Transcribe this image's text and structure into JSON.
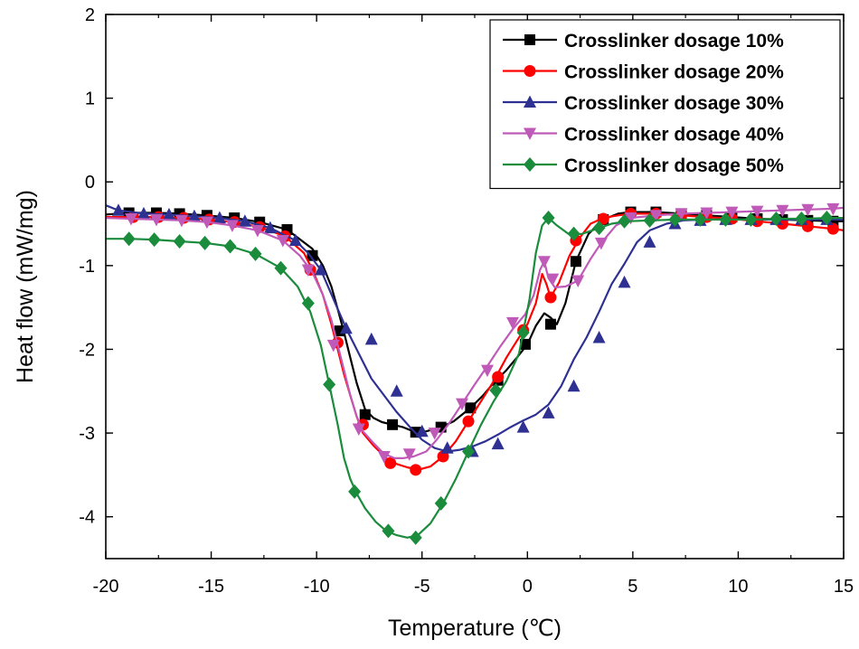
{
  "chart_data": {
    "type": "line",
    "title": "",
    "xlabel": "Temperature (℃)",
    "ylabel": "Heat flow (mW/mg)",
    "xlim": [
      -20,
      15
    ],
    "ylim": [
      -4.5,
      2
    ],
    "xticks": [
      "-20",
      "-15",
      "-10",
      "-5",
      "0",
      "5",
      "10",
      "15"
    ],
    "yticks": [
      "2",
      "1",
      "0",
      "-1",
      "-2",
      "-3",
      "-4"
    ],
    "grid": false,
    "legend_position": "top-right",
    "series": [
      {
        "name": "Crosslinker dosage 10%",
        "color": "#000000",
        "marker": "square",
        "x": [
          -20,
          -18.9,
          -17.6,
          -16.5,
          -15.2,
          -13.9,
          -12.7,
          -11.4,
          -10.2,
          -9.7,
          -9.3,
          -9.0,
          -8.7,
          -8.4,
          -8.1,
          -7.7,
          -7.3,
          -6.9,
          -6.4,
          -5.9,
          -5.3,
          -4.8,
          -4.1,
          -3.5,
          -2.7,
          -2.1,
          -1.6,
          -1.0,
          -0.5,
          0,
          0.4,
          0.8,
          1.1,
          1.4,
          1.8,
          2.3,
          2.9,
          3.6,
          4.3,
          4.9,
          6.1,
          7.3,
          8.5,
          9.7,
          10.9,
          12.1,
          13.3,
          14.5,
          15
        ],
        "y": [
          -0.39,
          -0.37,
          -0.37,
          -0.38,
          -0.4,
          -0.43,
          -0.48,
          -0.57,
          -0.8,
          -1.0,
          -1.25,
          -1.52,
          -1.8,
          -2.1,
          -2.4,
          -2.72,
          -2.82,
          -2.87,
          -2.9,
          -2.93,
          -2.99,
          -2.98,
          -2.93,
          -2.86,
          -2.7,
          -2.55,
          -2.4,
          -2.25,
          -2.1,
          -1.94,
          -1.72,
          -1.57,
          -1.62,
          -1.7,
          -1.45,
          -0.95,
          -0.62,
          -0.45,
          -0.38,
          -0.36,
          -0.36,
          -0.38,
          -0.4,
          -0.42,
          -0.44,
          -0.45,
          -0.46,
          -0.47,
          -0.47
        ],
        "markers": [
          [
            -18.9,
            -0.37
          ],
          [
            -17.6,
            -0.37
          ],
          [
            -16.5,
            -0.38
          ],
          [
            -15.2,
            -0.4
          ],
          [
            -13.9,
            -0.43
          ],
          [
            -12.7,
            -0.48
          ],
          [
            -11.4,
            -0.57
          ],
          [
            -10.2,
            -0.88
          ],
          [
            -8.9,
            -1.78
          ],
          [
            -7.7,
            -2.78
          ],
          [
            -6.4,
            -2.9
          ],
          [
            -5.3,
            -2.99
          ],
          [
            -4.1,
            -2.93
          ],
          [
            -2.7,
            -2.7
          ],
          [
            -1.4,
            -2.37
          ],
          [
            -0.1,
            -1.94
          ],
          [
            1.1,
            -1.7
          ],
          [
            2.3,
            -0.95
          ],
          [
            3.6,
            -0.45
          ],
          [
            4.9,
            -0.36
          ],
          [
            6.1,
            -0.36
          ],
          [
            7.3,
            -0.38
          ],
          [
            8.5,
            -0.4
          ],
          [
            9.7,
            -0.42
          ],
          [
            10.9,
            -0.44
          ],
          [
            12.1,
            -0.45
          ],
          [
            13.3,
            -0.46
          ],
          [
            14.5,
            -0.47
          ]
        ]
      },
      {
        "name": "Crosslinker dosage 20%",
        "color": "#ff0000",
        "marker": "circle",
        "x": [
          -20,
          -18.7,
          -17.5,
          -16.3,
          -15.1,
          -13.9,
          -12.7,
          -11.5,
          -10.6,
          -10.2,
          -9.7,
          -9.3,
          -9.0,
          -8.7,
          -8.4,
          -8.1,
          -7.8,
          -7.3,
          -6.7,
          -6.2,
          -5.7,
          -5.2,
          -4.6,
          -4.0,
          -3.4,
          -2.8,
          -2.2,
          -1.6,
          -1.0,
          -0.5,
          0,
          0.4,
          0.7,
          0.9,
          1.1,
          1.5,
          2.0,
          2.5,
          3.0,
          3.6,
          4.3,
          4.9,
          6.1,
          7.3,
          8.5,
          9.7,
          10.9,
          12.1,
          13.3,
          14.5,
          15
        ],
        "y": [
          -0.42,
          -0.42,
          -0.42,
          -0.43,
          -0.45,
          -0.48,
          -0.54,
          -0.65,
          -0.85,
          -1.05,
          -1.35,
          -1.7,
          -2.0,
          -2.3,
          -2.55,
          -2.8,
          -3.0,
          -3.15,
          -3.3,
          -3.37,
          -3.41,
          -3.44,
          -3.4,
          -3.28,
          -3.1,
          -2.86,
          -2.62,
          -2.38,
          -2.1,
          -1.9,
          -1.7,
          -1.45,
          -1.1,
          -1.22,
          -1.38,
          -1.2,
          -0.88,
          -0.66,
          -0.5,
          -0.43,
          -0.4,
          -0.38,
          -0.38,
          -0.4,
          -0.42,
          -0.44,
          -0.47,
          -0.5,
          -0.53,
          -0.56,
          -0.58
        ],
        "markers": [
          [
            -18.7,
            -0.42
          ],
          [
            -17.5,
            -0.42
          ],
          [
            -16.3,
            -0.43
          ],
          [
            -15.1,
            -0.45
          ],
          [
            -13.9,
            -0.48
          ],
          [
            -12.7,
            -0.54
          ],
          [
            -11.5,
            -0.65
          ],
          [
            -10.3,
            -1.05
          ],
          [
            -9.0,
            -1.92
          ],
          [
            -7.8,
            -2.9
          ],
          [
            -6.5,
            -3.36
          ],
          [
            -5.3,
            -3.44
          ],
          [
            -4.0,
            -3.28
          ],
          [
            -2.8,
            -2.86
          ],
          [
            -1.4,
            -2.33
          ],
          [
            -0.2,
            -1.77
          ],
          [
            1.1,
            -1.38
          ],
          [
            2.3,
            -0.7
          ],
          [
            3.6,
            -0.44
          ],
          [
            4.9,
            -0.38
          ],
          [
            6.1,
            -0.38
          ],
          [
            7.3,
            -0.4
          ],
          [
            8.5,
            -0.42
          ],
          [
            9.7,
            -0.44
          ],
          [
            10.9,
            -0.47
          ],
          [
            12.1,
            -0.5
          ],
          [
            13.3,
            -0.53
          ],
          [
            14.5,
            -0.56
          ]
        ]
      },
      {
        "name": "Crosslinker dosage 30%",
        "color": "#2e3192",
        "marker": "triangle-up",
        "x": [
          -20,
          -19.4,
          -18.2,
          -17.0,
          -15.8,
          -14.6,
          -13.4,
          -12.2,
          -11.0,
          -10.4,
          -9.8,
          -9.2,
          -8.6,
          -8.0,
          -7.4,
          -6.8,
          -6.2,
          -5.6,
          -5.0,
          -4.4,
          -3.8,
          -3.2,
          -2.6,
          -2.0,
          -1.4,
          -0.8,
          -0.2,
          0.4,
          1.0,
          1.6,
          2.2,
          2.8,
          3.4,
          4.0,
          4.6,
          5.2,
          5.8,
          6.6,
          7.4,
          8.5,
          9.7,
          10.9,
          12.1,
          13.3,
          14.5,
          15
        ],
        "y": [
          -0.28,
          -0.34,
          -0.38,
          -0.39,
          -0.41,
          -0.43,
          -0.47,
          -0.55,
          -0.7,
          -0.85,
          -1.05,
          -1.4,
          -1.75,
          -2.05,
          -2.35,
          -2.55,
          -2.75,
          -2.92,
          -3.08,
          -3.18,
          -3.22,
          -3.2,
          -3.16,
          -3.1,
          -3.02,
          -2.93,
          -2.85,
          -2.78,
          -2.66,
          -2.44,
          -2.12,
          -1.86,
          -1.55,
          -1.22,
          -0.98,
          -0.72,
          -0.58,
          -0.5,
          -0.46,
          -0.45,
          -0.45,
          -0.45,
          -0.45,
          -0.45,
          -0.45,
          -0.45
        ],
        "markers": [
          [
            -19.4,
            -0.34
          ],
          [
            -18.2,
            -0.38
          ],
          [
            -17.0,
            -0.39
          ],
          [
            -15.8,
            -0.41
          ],
          [
            -14.6,
            -0.43
          ],
          [
            -13.4,
            -0.47
          ],
          [
            -12.2,
            -0.55
          ],
          [
            -11.0,
            -0.7
          ],
          [
            -9.8,
            -1.05
          ],
          [
            -8.6,
            -1.75
          ],
          [
            -7.4,
            -1.88
          ],
          [
            -6.2,
            -2.5
          ],
          [
            -5.0,
            -2.98
          ],
          [
            -3.8,
            -3.18
          ],
          [
            -2.6,
            -3.22
          ],
          [
            -1.4,
            -3.13
          ],
          [
            -0.2,
            -2.93
          ],
          [
            1.0,
            -2.76
          ],
          [
            2.2,
            -2.44
          ],
          [
            3.4,
            -1.86
          ],
          [
            4.6,
            -1.2
          ],
          [
            5.8,
            -0.72
          ],
          [
            7.0,
            -0.5
          ],
          [
            8.2,
            -0.46
          ],
          [
            9.4,
            -0.45
          ],
          [
            10.6,
            -0.45
          ],
          [
            11.8,
            -0.45
          ],
          [
            13.0,
            -0.45
          ],
          [
            14.2,
            -0.45
          ]
        ]
      },
      {
        "name": "Crosslinker dosage 40%",
        "color": "#c05ab8",
        "marker": "triangle-down",
        "x": [
          -20,
          -18.8,
          -17.6,
          -16.4,
          -15.2,
          -14.0,
          -12.8,
          -11.6,
          -10.8,
          -10.2,
          -9.7,
          -9.3,
          -9.0,
          -8.7,
          -8.4,
          -8.1,
          -7.8,
          -7.3,
          -6.8,
          -6.3,
          -5.9,
          -5.4,
          -4.8,
          -4.3,
          -3.7,
          -3.1,
          -2.5,
          -1.9,
          -1.3,
          -0.7,
          -0.1,
          0.3,
          0.6,
          0.8,
          1.0,
          1.3,
          1.8,
          2.4,
          3.0,
          3.5,
          4.2,
          4.9,
          6.1,
          7.3,
          8.5,
          9.7,
          10.9,
          12.1,
          13.3,
          14.5,
          15
        ],
        "y": [
          -0.43,
          -0.44,
          -0.45,
          -0.46,
          -0.48,
          -0.52,
          -0.58,
          -0.7,
          -0.88,
          -1.08,
          -1.35,
          -1.65,
          -1.95,
          -2.25,
          -2.55,
          -2.8,
          -2.98,
          -3.12,
          -3.25,
          -3.3,
          -3.3,
          -3.28,
          -3.22,
          -3.08,
          -2.88,
          -2.65,
          -2.42,
          -2.2,
          -1.97,
          -1.76,
          -1.58,
          -1.35,
          -1.05,
          -0.95,
          -1.15,
          -1.26,
          -1.25,
          -1.18,
          -0.92,
          -0.73,
          -0.52,
          -0.43,
          -0.4,
          -0.38,
          -0.37,
          -0.36,
          -0.35,
          -0.34,
          -0.33,
          -0.32,
          -0.31
        ],
        "markers": [
          [
            -18.8,
            -0.44
          ],
          [
            -17.6,
            -0.45
          ],
          [
            -16.4,
            -0.46
          ],
          [
            -15.2,
            -0.48
          ],
          [
            -14.0,
            -0.52
          ],
          [
            -12.8,
            -0.58
          ],
          [
            -11.6,
            -0.7
          ],
          [
            -10.4,
            -1.05
          ],
          [
            -9.2,
            -1.95
          ],
          [
            -8.0,
            -2.95
          ],
          [
            -6.8,
            -3.28
          ],
          [
            -5.6,
            -3.25
          ],
          [
            -4.4,
            -3.0
          ],
          [
            -3.1,
            -2.65
          ],
          [
            -1.9,
            -2.25
          ],
          [
            -0.7,
            -1.68
          ],
          [
            0.8,
            -0.95
          ],
          [
            1.2,
            -1.16
          ],
          [
            2.4,
            -1.18
          ],
          [
            3.5,
            -0.73
          ],
          [
            4.9,
            -0.43
          ],
          [
            6.1,
            -0.4
          ],
          [
            7.3,
            -0.38
          ],
          [
            8.5,
            -0.37
          ],
          [
            9.7,
            -0.36
          ],
          [
            10.9,
            -0.35
          ],
          [
            12.1,
            -0.34
          ],
          [
            13.3,
            -0.33
          ],
          [
            14.5,
            -0.32
          ]
        ]
      },
      {
        "name": "Crosslinker dosage 50%",
        "color": "#1a8c3c",
        "marker": "diamond",
        "x": [
          -20,
          -18.9,
          -17.7,
          -16.5,
          -15.3,
          -14.1,
          -12.9,
          -11.7,
          -10.9,
          -10.3,
          -9.8,
          -9.4,
          -9.0,
          -8.7,
          -8.4,
          -8.1,
          -7.7,
          -7.2,
          -6.7,
          -6.2,
          -5.7,
          -5.2,
          -4.6,
          -4.0,
          -3.4,
          -2.8,
          -2.2,
          -1.6,
          -1.0,
          -0.4,
          0.1,
          0.4,
          0.7,
          1.0,
          1.4,
          2.0,
          2.6,
          3.3,
          4.0,
          4.7,
          5.9,
          7.1,
          8.3,
          9.5,
          10.7,
          11.9,
          13.1,
          14.3,
          15
        ],
        "y": [
          -0.68,
          -0.68,
          -0.69,
          -0.71,
          -0.73,
          -0.77,
          -0.86,
          -1.03,
          -1.25,
          -1.55,
          -1.95,
          -2.42,
          -2.9,
          -3.3,
          -3.55,
          -3.72,
          -3.9,
          -4.06,
          -4.17,
          -4.22,
          -4.25,
          -4.22,
          -4.08,
          -3.84,
          -3.55,
          -3.22,
          -2.9,
          -2.62,
          -2.38,
          -2.05,
          -1.4,
          -0.85,
          -0.52,
          -0.43,
          -0.52,
          -0.63,
          -0.62,
          -0.56,
          -0.5,
          -0.47,
          -0.46,
          -0.45,
          -0.45,
          -0.45,
          -0.45,
          -0.44,
          -0.44,
          -0.43,
          -0.43
        ],
        "markers": [
          [
            -18.9,
            -0.68
          ],
          [
            -17.7,
            -0.69
          ],
          [
            -16.5,
            -0.71
          ],
          [
            -15.3,
            -0.73
          ],
          [
            -14.1,
            -0.77
          ],
          [
            -12.9,
            -0.86
          ],
          [
            -11.7,
            -1.03
          ],
          [
            -10.4,
            -1.45
          ],
          [
            -9.4,
            -2.42
          ],
          [
            -8.2,
            -3.7
          ],
          [
            -6.6,
            -4.17
          ],
          [
            -5.3,
            -4.25
          ],
          [
            -4.1,
            -3.84
          ],
          [
            -2.8,
            -3.22
          ],
          [
            -1.5,
            -2.49
          ],
          [
            -0.2,
            -1.8
          ],
          [
            1.0,
            -0.43
          ],
          [
            2.2,
            -0.62
          ],
          [
            3.4,
            -0.55
          ],
          [
            4.6,
            -0.47
          ],
          [
            5.8,
            -0.46
          ],
          [
            7.0,
            -0.45
          ],
          [
            8.2,
            -0.45
          ],
          [
            9.4,
            -0.45
          ],
          [
            10.6,
            -0.45
          ],
          [
            11.8,
            -0.44
          ],
          [
            13.0,
            -0.44
          ],
          [
            14.2,
            -0.43
          ]
        ]
      }
    ]
  }
}
